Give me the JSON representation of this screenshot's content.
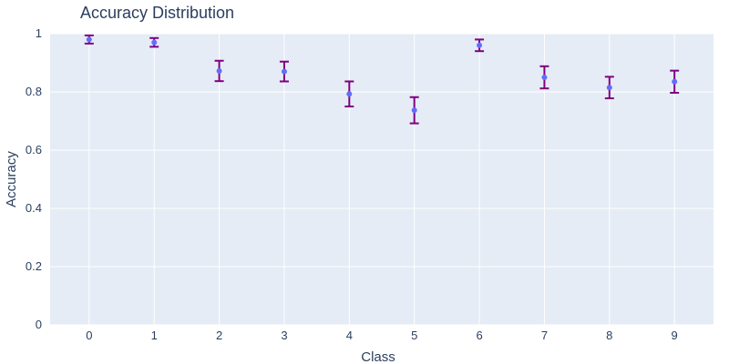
{
  "chart_data": {
    "type": "scatter",
    "title": "Accuracy Distribution",
    "xlabel": "Class",
    "ylabel": "Accuracy",
    "x": [
      0,
      1,
      2,
      3,
      4,
      5,
      6,
      7,
      8,
      9
    ],
    "values": [
      0.98,
      0.97,
      0.872,
      0.87,
      0.793,
      0.737,
      0.96,
      0.85,
      0.815,
      0.835
    ],
    "error": [
      0.014,
      0.015,
      0.035,
      0.034,
      0.043,
      0.045,
      0.02,
      0.038,
      0.037,
      0.038
    ],
    "xlim": [
      -0.6,
      9.6
    ],
    "ylim": [
      0,
      1
    ],
    "xticks": [
      "0",
      "1",
      "2",
      "3",
      "4",
      "5",
      "6",
      "7",
      "8",
      "9"
    ],
    "yticks": [
      "0",
      "0.2",
      "0.4",
      "0.6",
      "0.8",
      "1"
    ],
    "grid": true,
    "colors": {
      "background": "#e5ecf6",
      "grid": "#ffffff",
      "marker": "#636efa",
      "error_bar": "#800080",
      "text": "#2a3f5f"
    }
  }
}
